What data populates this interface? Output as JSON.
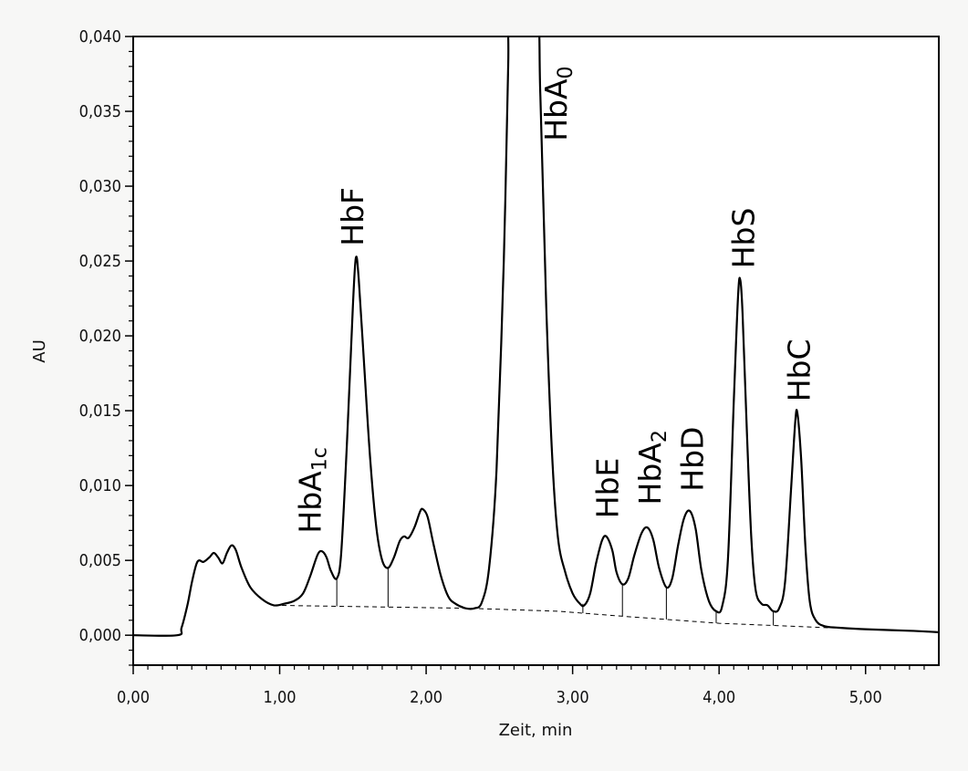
{
  "chart_data": {
    "type": "line",
    "xlabel": "Zeit, min",
    "ylabel": "AU",
    "xlim": [
      0,
      5.5
    ],
    "ylim": [
      -0.002,
      0.04
    ],
    "x_ticks": [
      "0,00",
      "1,00",
      "2,00",
      "3,00",
      "4,00",
      "5,00"
    ],
    "y_ticks": [
      "0,000",
      "0,005",
      "0,010",
      "0,015",
      "0,020",
      "0,025",
      "0,030",
      "0,035",
      "0,040"
    ],
    "grid": false,
    "series": [
      {
        "points": [
          [
            0.0,
            0.0
          ],
          [
            0.3,
            0.0
          ],
          [
            0.33,
            0.0005
          ],
          [
            0.37,
            0.002
          ],
          [
            0.4,
            0.0035
          ],
          [
            0.43,
            0.0047
          ],
          [
            0.45,
            0.005
          ],
          [
            0.48,
            0.0049
          ],
          [
            0.52,
            0.0052
          ],
          [
            0.55,
            0.0055
          ],
          [
            0.58,
            0.0052
          ],
          [
            0.61,
            0.0048
          ],
          [
            0.64,
            0.0055
          ],
          [
            0.67,
            0.006
          ],
          [
            0.7,
            0.0057
          ],
          [
            0.74,
            0.0045
          ],
          [
            0.8,
            0.0032
          ],
          [
            0.88,
            0.0024
          ],
          [
            0.96,
            0.002
          ],
          [
            1.03,
            0.0021
          ],
          [
            1.1,
            0.0023
          ],
          [
            1.16,
            0.0028
          ],
          [
            1.21,
            0.004
          ],
          [
            1.26,
            0.0054
          ],
          [
            1.29,
            0.0056
          ],
          [
            1.32,
            0.0052
          ],
          [
            1.35,
            0.0043
          ],
          [
            1.39,
            0.0038
          ],
          [
            1.42,
            0.0055
          ],
          [
            1.46,
            0.013
          ],
          [
            1.5,
            0.022
          ],
          [
            1.52,
            0.0252
          ],
          [
            1.54,
            0.0238
          ],
          [
            1.58,
            0.0175
          ],
          [
            1.62,
            0.0115
          ],
          [
            1.66,
            0.0072
          ],
          [
            1.7,
            0.005
          ],
          [
            1.74,
            0.0045
          ],
          [
            1.78,
            0.0052
          ],
          [
            1.82,
            0.0063
          ],
          [
            1.85,
            0.0066
          ],
          [
            1.88,
            0.0065
          ],
          [
            1.92,
            0.0072
          ],
          [
            1.96,
            0.0083
          ],
          [
            1.98,
            0.0084
          ],
          [
            2.01,
            0.0079
          ],
          [
            2.05,
            0.0061
          ],
          [
            2.1,
            0.004
          ],
          [
            2.15,
            0.0026
          ],
          [
            2.2,
            0.0021
          ],
          [
            2.27,
            0.0018
          ],
          [
            2.33,
            0.0018
          ],
          [
            2.38,
            0.0022
          ],
          [
            2.43,
            0.0045
          ],
          [
            2.48,
            0.011
          ],
          [
            2.53,
            0.025
          ],
          [
            2.56,
            0.038
          ],
          [
            2.575,
            0.042
          ],
          [
            2.75,
            0.042
          ],
          [
            2.78,
            0.036
          ],
          [
            2.82,
            0.022
          ],
          [
            2.86,
            0.012
          ],
          [
            2.9,
            0.0065
          ],
          [
            2.95,
            0.0042
          ],
          [
            3.0,
            0.0028
          ],
          [
            3.05,
            0.0021
          ],
          [
            3.08,
            0.002
          ],
          [
            3.12,
            0.0028
          ],
          [
            3.16,
            0.0048
          ],
          [
            3.2,
            0.0063
          ],
          [
            3.23,
            0.0066
          ],
          [
            3.27,
            0.0057
          ],
          [
            3.3,
            0.0042
          ],
          [
            3.34,
            0.0034
          ],
          [
            3.38,
            0.0038
          ],
          [
            3.42,
            0.0053
          ],
          [
            3.47,
            0.0068
          ],
          [
            3.51,
            0.0072
          ],
          [
            3.55,
            0.0064
          ],
          [
            3.59,
            0.0045
          ],
          [
            3.64,
            0.0032
          ],
          [
            3.68,
            0.0038
          ],
          [
            3.72,
            0.006
          ],
          [
            3.76,
            0.0078
          ],
          [
            3.8,
            0.0083
          ],
          [
            3.84,
            0.0071
          ],
          [
            3.88,
            0.0043
          ],
          [
            3.93,
            0.0023
          ],
          [
            3.98,
            0.0016
          ],
          [
            4.02,
            0.0019
          ],
          [
            4.06,
            0.005
          ],
          [
            4.1,
            0.0155
          ],
          [
            4.13,
            0.0228
          ],
          [
            4.145,
            0.0237
          ],
          [
            4.16,
            0.0215
          ],
          [
            4.19,
            0.0135
          ],
          [
            4.22,
            0.0065
          ],
          [
            4.25,
            0.003
          ],
          [
            4.29,
            0.0021
          ],
          [
            4.33,
            0.002
          ],
          [
            4.37,
            0.0016
          ],
          [
            4.41,
            0.0018
          ],
          [
            4.45,
            0.0035
          ],
          [
            4.49,
            0.0095
          ],
          [
            4.52,
            0.0143
          ],
          [
            4.535,
            0.0148
          ],
          [
            4.56,
            0.0118
          ],
          [
            4.59,
            0.0058
          ],
          [
            4.62,
            0.0022
          ],
          [
            4.66,
            0.001
          ],
          [
            4.72,
            0.0006
          ],
          [
            4.82,
            0.0005
          ],
          [
            5.0,
            0.0004
          ],
          [
            5.3,
            0.0003
          ],
          [
            5.5,
            0.0002
          ]
        ]
      }
    ],
    "baseline": {
      "style": "dashed",
      "points": [
        [
          0.96,
          0.002
        ],
        [
          2.3,
          0.0018
        ],
        [
          2.9,
          0.0016
        ],
        [
          3.3,
          0.0013
        ],
        [
          4.0,
          0.0008
        ],
        [
          4.75,
          0.0005
        ]
      ]
    },
    "drop_lines": [
      {
        "x": 1.39,
        "y": 0.0038
      },
      {
        "x": 1.74,
        "y": 0.0045
      },
      {
        "x": 3.07,
        "y": 0.0021
      },
      {
        "x": 3.34,
        "y": 0.0034
      },
      {
        "x": 3.64,
        "y": 0.0032
      },
      {
        "x": 3.98,
        "y": 0.0016
      },
      {
        "x": 4.37,
        "y": 0.0016
      }
    ],
    "annotations": [
      {
        "text": "HbA",
        "sub": "1c",
        "x": 1.28,
        "y": 0.0068
      },
      {
        "text": "HbF",
        "sub": "",
        "x": 1.57,
        "y": 0.026
      },
      {
        "text": "HbA",
        "sub": "0",
        "x": 2.96,
        "y": 0.033
      },
      {
        "text": "HbE",
        "sub": "",
        "x": 3.31,
        "y": 0.0078
      },
      {
        "text": "HbA",
        "sub": "2",
        "x": 3.6,
        "y": 0.0087
      },
      {
        "text": "HbD",
        "sub": "",
        "x": 3.89,
        "y": 0.0096
      },
      {
        "text": "HbS",
        "sub": "",
        "x": 4.24,
        "y": 0.0245
      },
      {
        "text": "HbC",
        "sub": "",
        "x": 4.62,
        "y": 0.0156
      }
    ]
  }
}
